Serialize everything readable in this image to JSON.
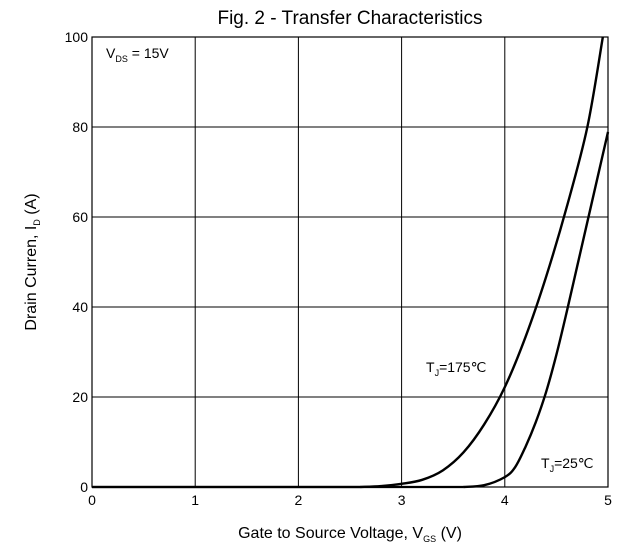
{
  "chart_data": {
    "type": "line",
    "title": "Fig. 2 - Transfer Characteristics",
    "xlabel": {
      "main": "Gate to Source Voltage, V",
      "sub": "GS",
      "tail": " (V)"
    },
    "ylabel": {
      "main": "Drain Curren, I",
      "sub": "D",
      "tail": " (A)"
    },
    "xlim": [
      0,
      5
    ],
    "ylim": [
      0,
      100
    ],
    "xticks": [
      "0",
      "1",
      "2",
      "3",
      "4",
      "5"
    ],
    "yticks": [
      "0",
      "20",
      "40",
      "60",
      "80",
      "100"
    ],
    "grid": true,
    "condition": {
      "main": "V",
      "sub": "DS",
      "tail": " = 15V"
    },
    "series": [
      {
        "name": "T_J=175℃",
        "label": {
          "main": "T",
          "sub": "J",
          "tail": "=175℃"
        },
        "color": "#000000",
        "points": [
          [
            2.6,
            0
          ],
          [
            2.8,
            0.2
          ],
          [
            3.0,
            0.7
          ],
          [
            3.2,
            1.6
          ],
          [
            3.4,
            3.7
          ],
          [
            3.6,
            7.7
          ],
          [
            3.8,
            13.9
          ],
          [
            4.0,
            22.2
          ],
          [
            4.2,
            33.3
          ],
          [
            4.4,
            46.7
          ],
          [
            4.6,
            62.2
          ],
          [
            4.8,
            80.0
          ],
          [
            4.95,
            100
          ]
        ]
      },
      {
        "name": "T_J=25℃",
        "label": {
          "main": "T",
          "sub": "J",
          "tail": "=25℃"
        },
        "color": "#000000",
        "points": [
          [
            3.6,
            0
          ],
          [
            3.8,
            0.4
          ],
          [
            4.0,
            2.2
          ],
          [
            4.1,
            4.4
          ],
          [
            4.2,
            8.9
          ],
          [
            4.3,
            14.4
          ],
          [
            4.4,
            21.1
          ],
          [
            4.5,
            29.4
          ],
          [
            4.6,
            38.9
          ],
          [
            4.7,
            48.9
          ],
          [
            4.8,
            58.9
          ],
          [
            4.9,
            68.9
          ],
          [
            5.0,
            78.9
          ]
        ]
      }
    ]
  }
}
